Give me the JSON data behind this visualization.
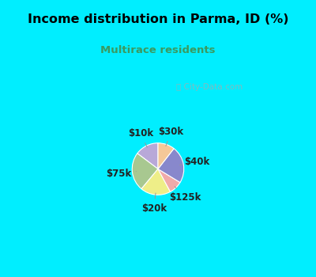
{
  "title": "Income distribution in Parma, ID (%)",
  "subtitle": "Multirace residents",
  "title_color": "#000000",
  "subtitle_color": "#3a9a60",
  "bg_top_color": "#00eeff",
  "bg_chart_color": "#ddf0e4",
  "watermark": "City-Data.com",
  "slices": [
    {
      "label": "$10k",
      "value": 14,
      "color": "#b8a8d8"
    },
    {
      "label": "$75k",
      "value": 23,
      "color": "#a8c890"
    },
    {
      "label": "$20k",
      "value": 18,
      "color": "#eeee88"
    },
    {
      "label": "$125k",
      "value": 8,
      "color": "#f0aaaa"
    },
    {
      "label": "$40k",
      "value": 22,
      "color": "#8888cc"
    },
    {
      "label": "$30k",
      "value": 10,
      "color": "#f5c898"
    }
  ],
  "label_fontsize": 8.5,
  "figsize": [
    4.0,
    3.5
  ],
  "dpi": 100
}
